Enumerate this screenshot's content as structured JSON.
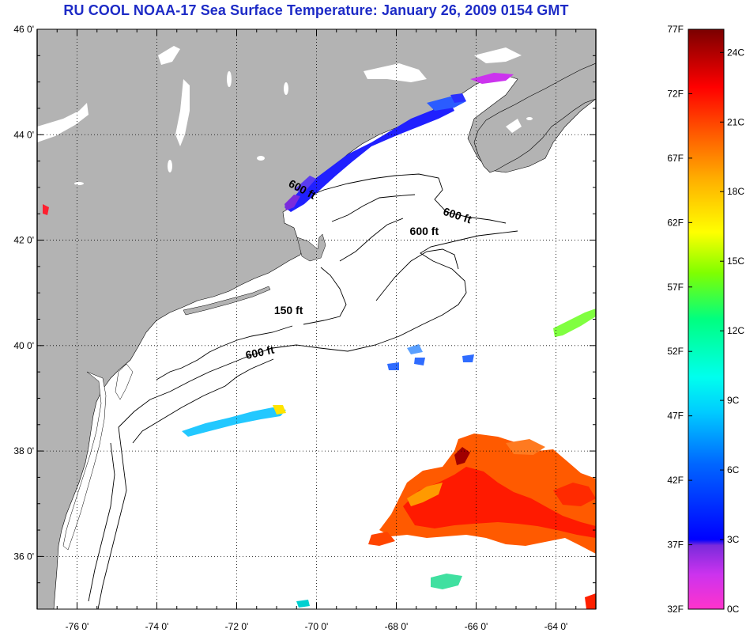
{
  "title": "RU COOL  NOAA-17  Sea Surface Temperature:  January 26, 2009 0154 GMT",
  "map": {
    "lon_range": [
      -77,
      -63
    ],
    "lat_range": [
      35,
      46
    ],
    "lon_ticks": [
      {
        "value": -76,
        "label": "-76 0'"
      },
      {
        "value": -74,
        "label": "-74 0'"
      },
      {
        "value": -72,
        "label": "-72 0'"
      },
      {
        "value": -70,
        "label": "-70 0'"
      },
      {
        "value": -68,
        "label": "-68 0'"
      },
      {
        "value": -66,
        "label": "-66 0'"
      },
      {
        "value": -64,
        "label": "-64 0'"
      }
    ],
    "lat_ticks": [
      {
        "value": 46,
        "label": "46 0'"
      },
      {
        "value": 44,
        "label": "44 0'"
      },
      {
        "value": 42,
        "label": "42 0'"
      },
      {
        "value": 40,
        "label": "40 0'"
      },
      {
        "value": 38,
        "label": "38 0'"
      },
      {
        "value": 36,
        "label": "36 0'"
      }
    ],
    "grid": "dotted",
    "land_color": "#b3b3b3",
    "ocean_color": "#ffffff",
    "depth_labels": [
      {
        "text": "600 ft",
        "lon": -70.4,
        "lat": 42.9,
        "angle": 28
      },
      {
        "text": "600 ft",
        "lon": -66.5,
        "lat": 42.4,
        "angle": 18
      },
      {
        "text": "600 ft",
        "lon": -67.3,
        "lat": 42.1,
        "angle": 0
      },
      {
        "text": "150 ft",
        "lon": -70.7,
        "lat": 40.6,
        "angle": 0
      },
      {
        "text": "600 ft",
        "lon": -71.4,
        "lat": 39.8,
        "angle": -12
      }
    ]
  },
  "colorbar": {
    "f_labels": [
      "77F",
      "72F",
      "67F",
      "62F",
      "57F",
      "52F",
      "47F",
      "42F",
      "37F",
      "32F"
    ],
    "f_values": [
      77,
      72,
      67,
      62,
      57,
      52,
      47,
      42,
      37,
      32
    ],
    "c_labels": [
      "24C",
      "21C",
      "18C",
      "15C",
      "12C",
      "9C",
      "6C",
      "3C",
      "0C"
    ],
    "c_values": [
      24,
      21,
      18,
      15,
      12,
      9,
      6,
      3,
      0
    ],
    "range_f": [
      32,
      77
    ],
    "colors": [
      "#ff33cc",
      "#8a2be2",
      "#0000ff",
      "#00a0ff",
      "#00ffff",
      "#00ff80",
      "#80ff00",
      "#ffff00",
      "#ffb000",
      "#ff6000",
      "#ff0000",
      "#b00000",
      "#800000"
    ]
  }
}
